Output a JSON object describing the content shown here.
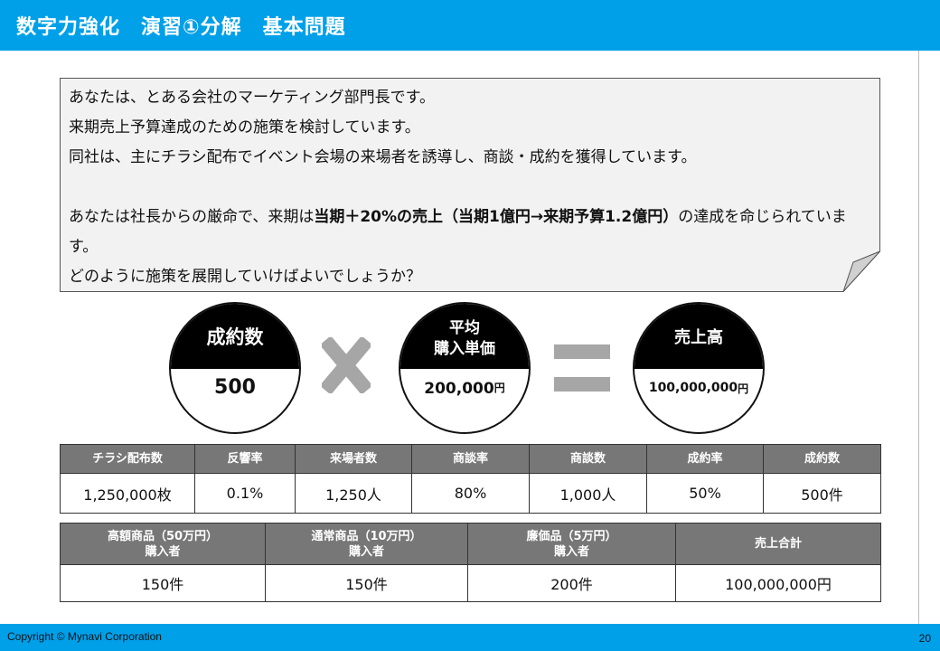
{
  "header": {
    "title": "数字力強化　演習①分解　基本問題"
  },
  "note": {
    "line1": "あなたは、とある会社のマーケティング部門長です。",
    "line2": "来期売上予算達成のための施策を検討しています。",
    "line3": "同社は、主にチラシ配布でイベント会場の来場者を誘導し、商談・成約を獲得しています。",
    "line4_pre": "あなたは社長からの厳命で、来期は",
    "line4_bold": "当期＋20%の売上（当期1億円→来期予算1.2億円）",
    "line4_post": "の達成を命じられています。",
    "line5": "どのように施策を展開していけばよいでしょうか？"
  },
  "equation": {
    "term1": {
      "label": "成約数",
      "value": "500"
    },
    "term2": {
      "label_line1": "平均",
      "label_line2": "購入単価",
      "value": "200,000",
      "unit": "円"
    },
    "term3": {
      "label": "売上高",
      "value": "100,000,000",
      "unit": "円"
    },
    "operator1_icon": "multiply-icon",
    "operator2_icon": "equals-icon",
    "operator_color": "#a6a6a6"
  },
  "funnel_table": {
    "headers": [
      "チラシ配布数",
      "反響率",
      "来場者数",
      "商談率",
      "商談数",
      "成約率",
      "成約数"
    ],
    "values": [
      "1,250,000枚",
      "0.1%",
      "1,250人",
      "80%",
      "1,000人",
      "50%",
      "500件"
    ]
  },
  "product_table": {
    "headers": [
      {
        "line1": "高額商品（50万円）",
        "line2": "購入者"
      },
      {
        "line1": "通常商品（10万円）",
        "line2": "購入者"
      },
      {
        "line1": "廉価品（5万円）",
        "line2": "購入者"
      },
      {
        "line1": "売上合計",
        "line2": ""
      }
    ],
    "values": [
      "150件",
      "150件",
      "200件",
      "100,000,000円"
    ]
  },
  "footer": {
    "copyright": "Copyright ©  Mynavi Corporation",
    "page": "20"
  },
  "colors": {
    "brand": "#00a0e9",
    "table_header": "#777777"
  }
}
